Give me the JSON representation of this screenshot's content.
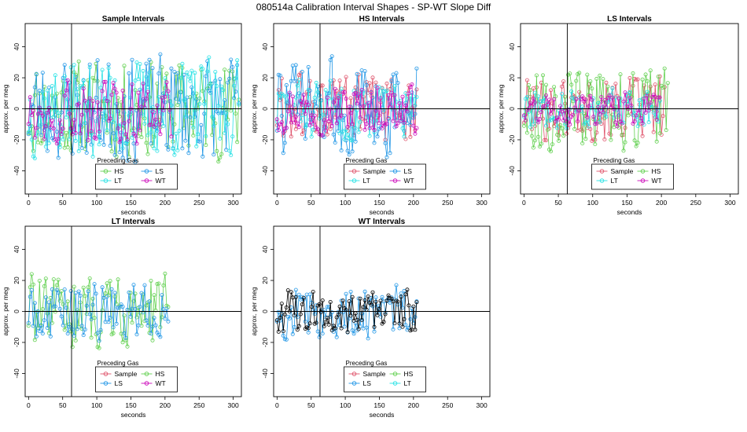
{
  "figure": {
    "title": "080514a   Calibration Interval Shapes - SP-WT Slope Diff"
  },
  "colors": {
    "Sample": "#df536b",
    "HS": "#61d04f",
    "LS": "#2297e6",
    "LT": "#28e2e5",
    "WT": "#cd0bbc",
    "ref": "#000000"
  },
  "chart_data": [
    {
      "type": "line",
      "title": "Sample Intervals",
      "xlabel": "seconds",
      "ylabel": "approx. per meg",
      "xlim": [
        -5,
        312
      ],
      "ylim": [
        -55,
        55
      ],
      "xticks": [
        0,
        50,
        100,
        150,
        200,
        250,
        300
      ],
      "yticks": [
        -40,
        -20,
        0,
        20,
        40
      ],
      "hline": 0,
      "vline": 63,
      "legend": {
        "title": "Preceding Gas",
        "position": "bottom-center",
        "entries": [
          "HS",
          "LS",
          "LT",
          "WT"
        ]
      },
      "series": [
        {
          "name": "HS",
          "xmax": 310,
          "amp": 30,
          "seed": 11
        },
        {
          "name": "LS",
          "xmax": 310,
          "amp": 32,
          "seed": 23
        },
        {
          "name": "LT",
          "xmax": 310,
          "amp": 30,
          "seed": 37
        },
        {
          "name": "WT",
          "xmax": 210,
          "amp": 20,
          "seed": 49
        }
      ]
    },
    {
      "type": "line",
      "title": "HS Intervals",
      "xlabel": "seconds",
      "ylabel": "approx. per meg",
      "xlim": [
        -5,
        312
      ],
      "ylim": [
        -55,
        55
      ],
      "xticks": [
        0,
        50,
        100,
        150,
        200,
        250,
        300
      ],
      "yticks": [
        -40,
        -20,
        0,
        20,
        40
      ],
      "hline": 0,
      "vline": 63,
      "legend": {
        "title": "Preceding Gas",
        "position": "bottom-center",
        "entries": [
          "Sample",
          "LS",
          "LT",
          "WT"
        ]
      },
      "series": [
        {
          "name": "Sample",
          "xmax": 205,
          "amp": 22,
          "seed": 61
        },
        {
          "name": "LS",
          "xmax": 205,
          "amp": 30,
          "seed": 73
        },
        {
          "name": "LT",
          "xmax": 205,
          "amp": 18,
          "seed": 83
        },
        {
          "name": "WT",
          "xmax": 205,
          "amp": 15,
          "seed": 97
        }
      ]
    },
    {
      "type": "line",
      "title": "LS Intervals",
      "xlabel": "seconds",
      "ylabel": "approx. per meg",
      "xlim": [
        -5,
        312
      ],
      "ylim": [
        -55,
        55
      ],
      "xticks": [
        0,
        50,
        100,
        150,
        200,
        250,
        300
      ],
      "yticks": [
        -40,
        -20,
        0,
        20,
        40
      ],
      "hline": 0,
      "vline": 63,
      "legend": {
        "title": "Preceding Gas",
        "position": "bottom-center",
        "entries": [
          "Sample",
          "HS",
          "LT",
          "WT"
        ]
      },
      "series": [
        {
          "name": "Sample",
          "xmax": 205,
          "amp": 20,
          "seed": 101
        },
        {
          "name": "HS",
          "xmax": 210,
          "amp": 25,
          "seed": 113
        },
        {
          "name": "LT",
          "xmax": 200,
          "amp": 12,
          "seed": 127
        },
        {
          "name": "WT",
          "xmax": 200,
          "amp": 10,
          "seed": 131
        }
      ]
    },
    {
      "type": "line",
      "title": "LT Intervals",
      "xlabel": "seconds",
      "ylabel": "approx. per meg",
      "xlim": [
        -5,
        312
      ],
      "ylim": [
        -55,
        55
      ],
      "xticks": [
        0,
        50,
        100,
        150,
        200,
        250,
        300
      ],
      "yticks": [
        -40,
        -20,
        0,
        20,
        40
      ],
      "hline": 0,
      "vline": 63,
      "legend": {
        "title": "Preceding Gas",
        "position": "bottom-center",
        "entries": [
          "Sample",
          "HS",
          "LS",
          "WT"
        ]
      },
      "series": [
        {
          "name": "HS",
          "xmax": 205,
          "amp": 22,
          "seed": 139
        },
        {
          "name": "LS",
          "xmax": 205,
          "amp": 18,
          "seed": 149
        }
      ]
    },
    {
      "type": "line",
      "title": "WT Intervals",
      "xlabel": "seconds",
      "ylabel": "approx. per meg",
      "xlim": [
        -5,
        312
      ],
      "ylim": [
        -55,
        55
      ],
      "xticks": [
        0,
        50,
        100,
        150,
        200,
        250,
        300
      ],
      "yticks": [
        -40,
        -20,
        0,
        20,
        40
      ],
      "hline": 0,
      "vline": 63,
      "legend": {
        "title": "Preceding Gas",
        "position": "bottom-center",
        "entries": [
          "Sample",
          "HS",
          "LS",
          "LT"
        ]
      },
      "series": [
        {
          "name": "LS",
          "xmax": 205,
          "amp": 16,
          "seed": 157
        },
        {
          "name": "Black",
          "color_key": "ref",
          "xmax": 205,
          "amp": 14,
          "seed": 163
        }
      ]
    }
  ]
}
